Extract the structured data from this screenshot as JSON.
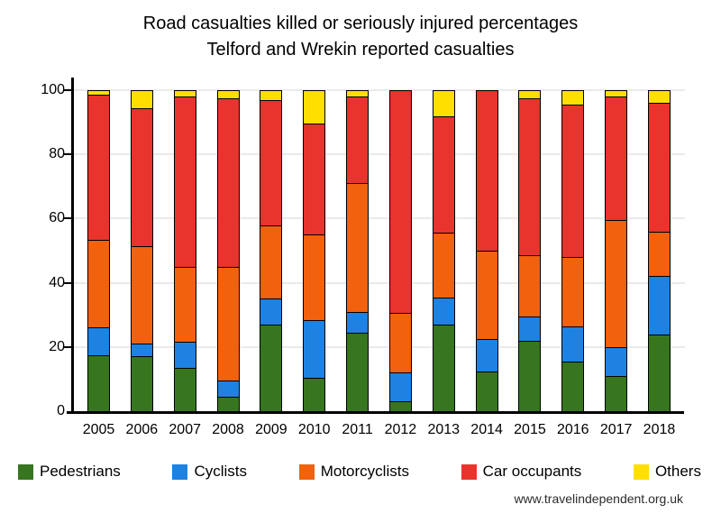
{
  "chart_data": {
    "type": "bar",
    "stacked": true,
    "title": "Road casualties killed or seriously injured percentages",
    "subtitle": "Telford and Wrekin reported casualties",
    "categories": [
      "2005",
      "2006",
      "2007",
      "2008",
      "2009",
      "2010",
      "2011",
      "2012",
      "2013",
      "2014",
      "2015",
      "2016",
      "2017",
      "2018"
    ],
    "series": [
      {
        "name": "Pedestrians",
        "color": "#37761F",
        "values": [
          17.5,
          17,
          13.5,
          4.5,
          27,
          10.5,
          24.5,
          3,
          27,
          12.5,
          22,
          15.5,
          11,
          24
        ]
      },
      {
        "name": "Cyclists",
        "color": "#1E82E2",
        "values": [
          8.5,
          4,
          8,
          5,
          8,
          18,
          6.5,
          9,
          8.5,
          10,
          7.5,
          11,
          9,
          18
        ]
      },
      {
        "name": "Motorcyclists",
        "color": "#F2610D",
        "values": [
          27.5,
          30.5,
          23.5,
          35.5,
          23,
          26.5,
          40,
          18.5,
          20,
          27.5,
          19,
          21.5,
          39.5,
          14
        ]
      },
      {
        "name": "Car occupants",
        "color": "#E8342C",
        "values": [
          45,
          43,
          53,
          52.5,
          39,
          34.5,
          27,
          69.5,
          36.5,
          50,
          49,
          47.5,
          38.5,
          40
        ]
      },
      {
        "name": "Others",
        "color": "#FFDF00",
        "values": [
          1.5,
          5.5,
          2,
          2.5,
          3,
          10.5,
          2,
          0,
          8,
          0,
          2.5,
          4.5,
          2,
          4
        ]
      }
    ],
    "yticks": [
      0,
      20,
      40,
      60,
      80,
      100
    ],
    "ylim": [
      0,
      100
    ],
    "grid": "horizontal",
    "legend_position": "bottom",
    "axis_color": "#000000",
    "gridline_color": "#eaeaea"
  },
  "footer": {
    "website": "www.travelindependent.org.uk"
  }
}
